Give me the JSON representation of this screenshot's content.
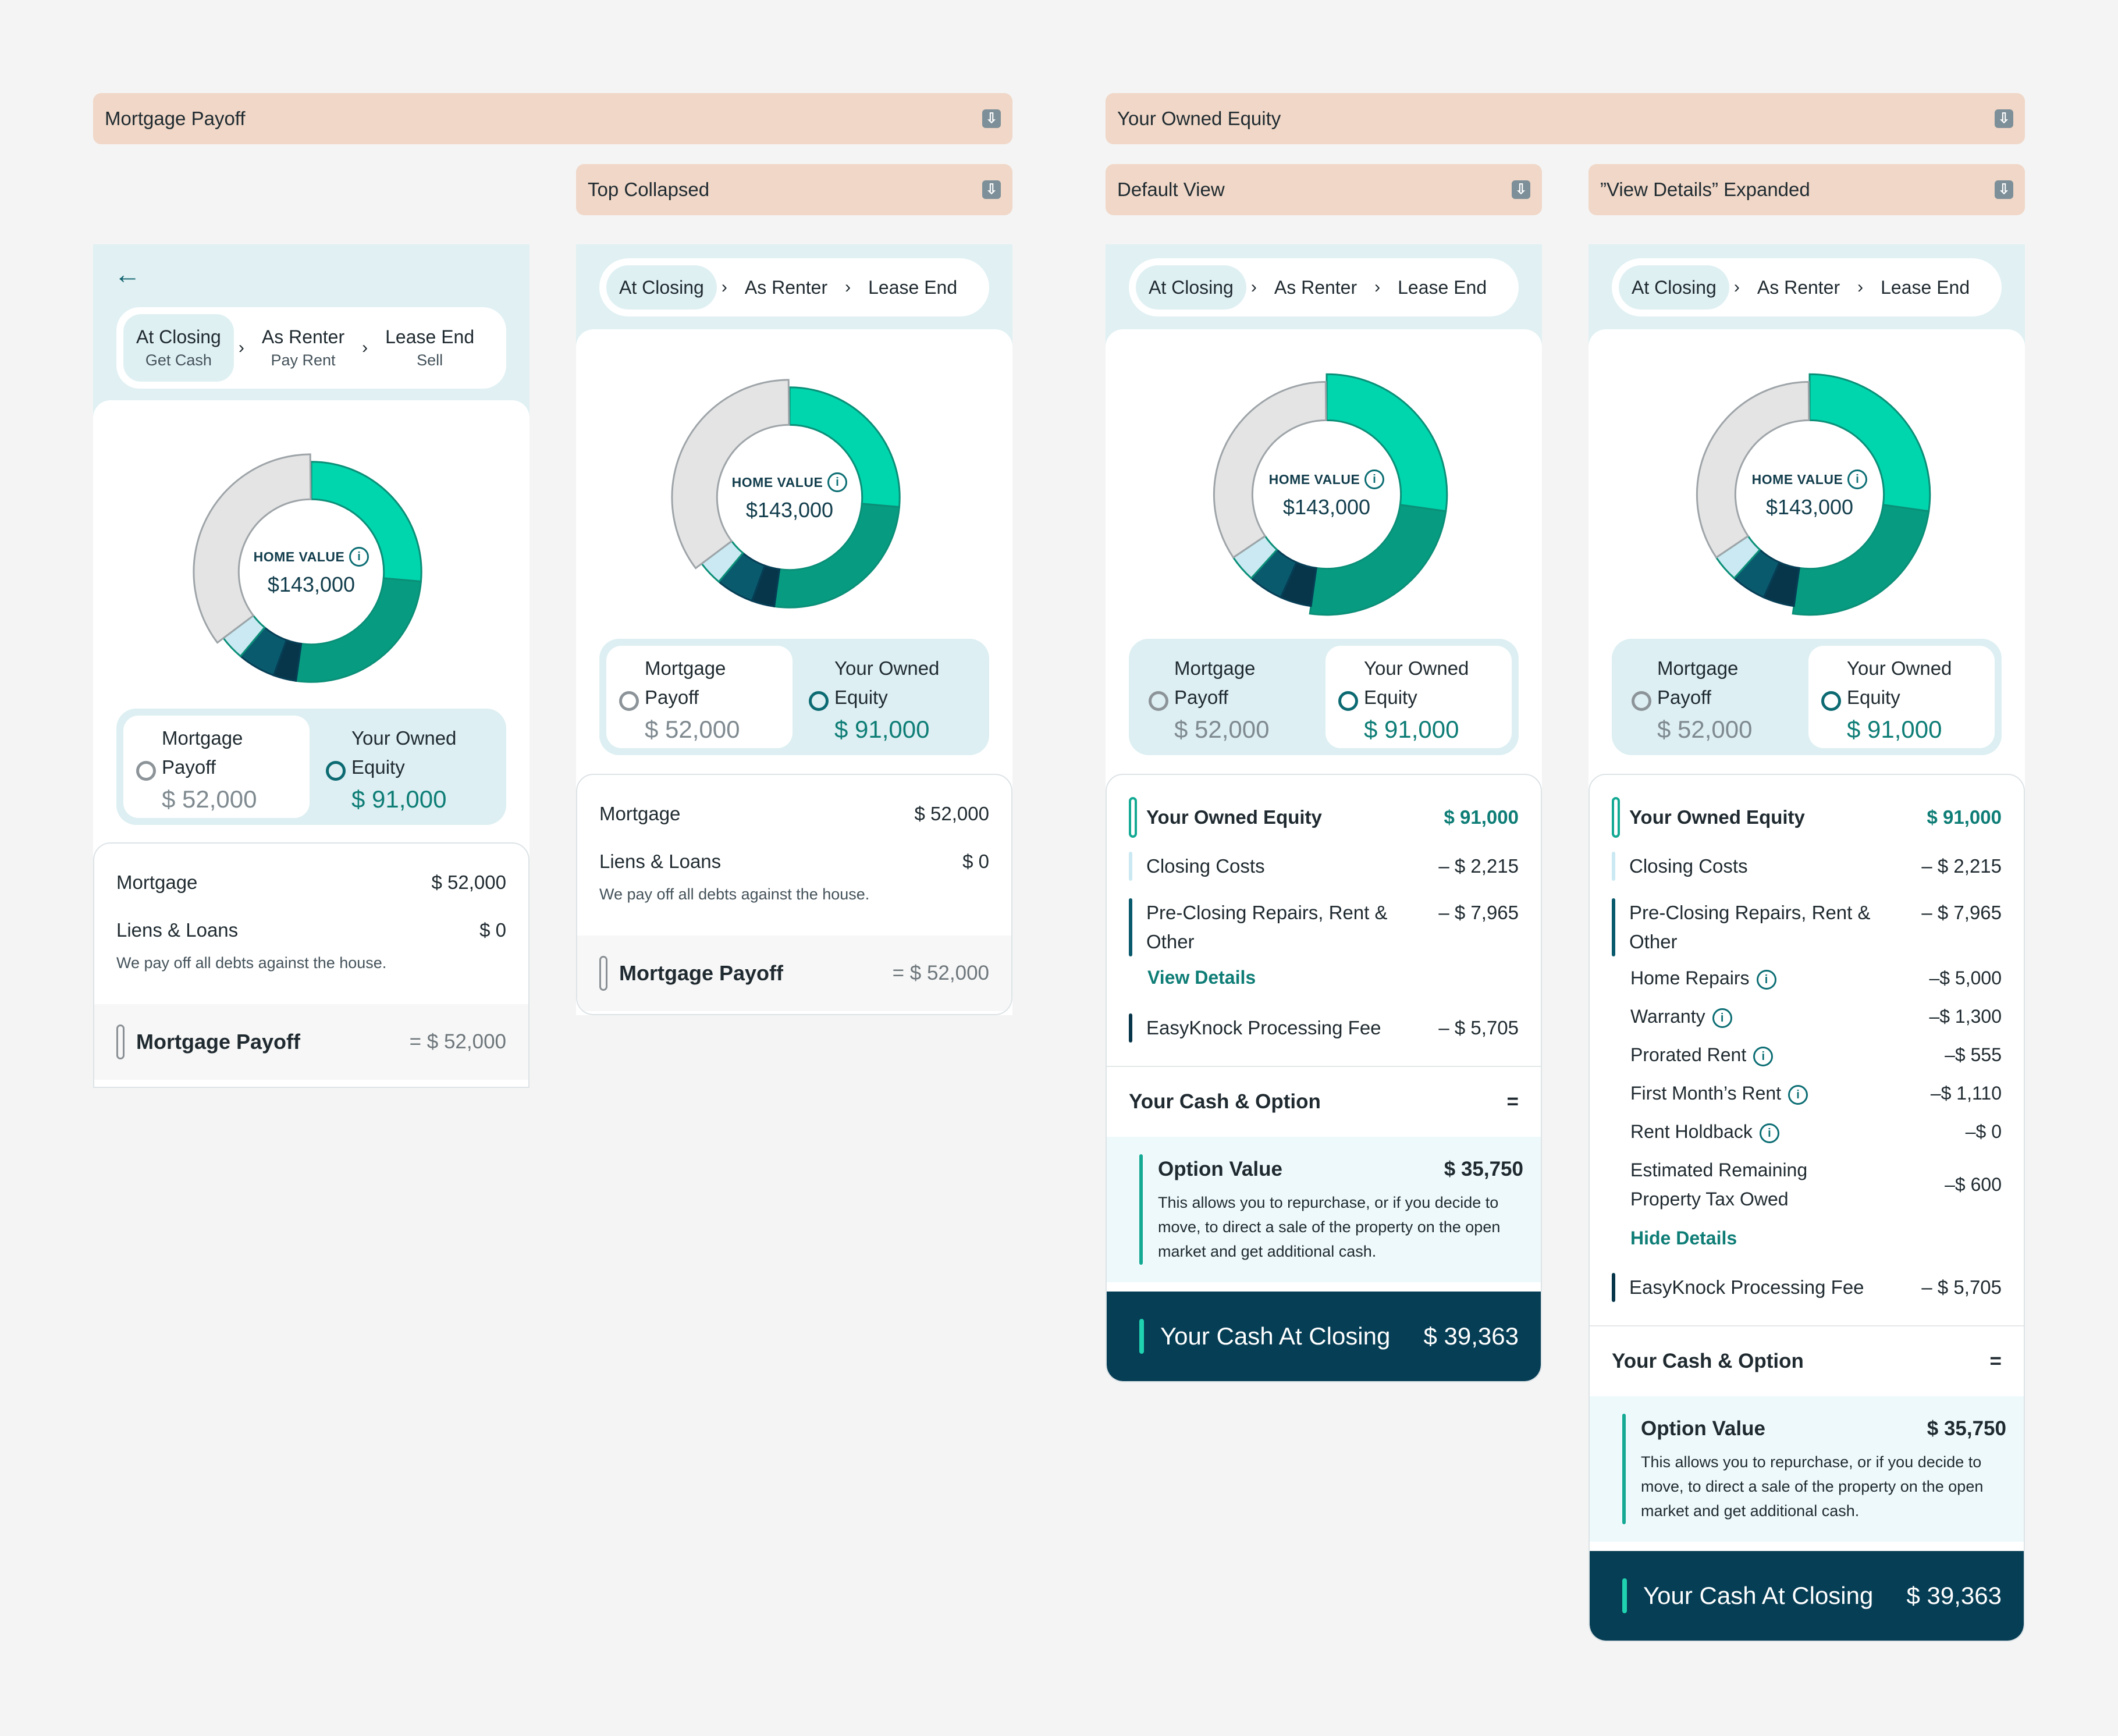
{
  "labels": {
    "mortgage_payoff": "Mortgage Payoff",
    "your_owned_equity": "Your Owned Equity",
    "top_collapsed": "Top Collapsed",
    "default_view": "Default View",
    "view_details_expanded": "”View Details” Expanded"
  },
  "tabs": {
    "at_closing": "At Closing",
    "at_closing_sub": "Get Cash",
    "as_renter": "As Renter",
    "as_renter_sub": "Pay Rent",
    "lease_end": "Lease End",
    "lease_end_sub": "Sell"
  },
  "home_value": {
    "label": "HOME VALUE",
    "value": "$143,000"
  },
  "toggle": {
    "mortgage_line1": "Mortgage",
    "mortgage_line2": "Payoff",
    "mortgage_value": "$ 52,000",
    "equity_line1": "Your Owned",
    "equity_line2": "Equity",
    "equity_value": "$ 91,000"
  },
  "mortgage_sheet": {
    "mortgage_label": "Mortgage",
    "mortgage_value": "$ 52,000",
    "liens_label": "Liens & Loans",
    "liens_value": "$ 0",
    "note": "We pay off all debts against the house.",
    "total_label": "Mortgage Payoff",
    "total_value": "= $ 52,000"
  },
  "equity_sheet": {
    "equity_label": "Your Owned Equity",
    "equity_value": "$ 91,000",
    "closing_label": "Closing Costs",
    "closing_value": "– $ 2,215",
    "repairs_label_1": "Pre-Closing Repairs, Rent &",
    "repairs_label_2": "Other",
    "repairs_value": "– $ 7,965",
    "view_details": "View Details",
    "hide_details": "Hide Details",
    "fee_label": "EasyKnock Processing Fee",
    "fee_value": "– $ 5,705",
    "cash_option_label": "Your Cash & Option",
    "cash_option_sign": "=",
    "option_label": "Option Value",
    "option_value": "$ 35,750",
    "option_desc": "This allows you to repurchase, or if you decide to move, to direct a sale of the property on the open market and get additional cash.",
    "cash_label": "Your Cash At Closing",
    "cash_value": "$ 39,363"
  },
  "details": [
    {
      "label": "Home Repairs",
      "value": "–$ 5,000",
      "info": true
    },
    {
      "label": "Warranty",
      "value": "–$ 1,300",
      "info": true
    },
    {
      "label": "Prorated Rent",
      "value": "–$ 555",
      "info": true
    },
    {
      "label": "First Month’s Rent",
      "value": "–$ 1,110",
      "info": true
    },
    {
      "label": "Rent Holdback",
      "value": "–$ 0",
      "info": true
    },
    {
      "label": "Estimated Remaining",
      "label2": "Property Tax Owed",
      "value": "–$ 600",
      "info": false
    }
  ],
  "colors": {
    "teal_light": "#00d6ad",
    "teal_dark": "#079c81",
    "navy": "#0a5a6e",
    "dark_navy": "#07364a",
    "pale_blue": "#cbe9f2",
    "grey_ring": "#e4e4e4"
  }
}
